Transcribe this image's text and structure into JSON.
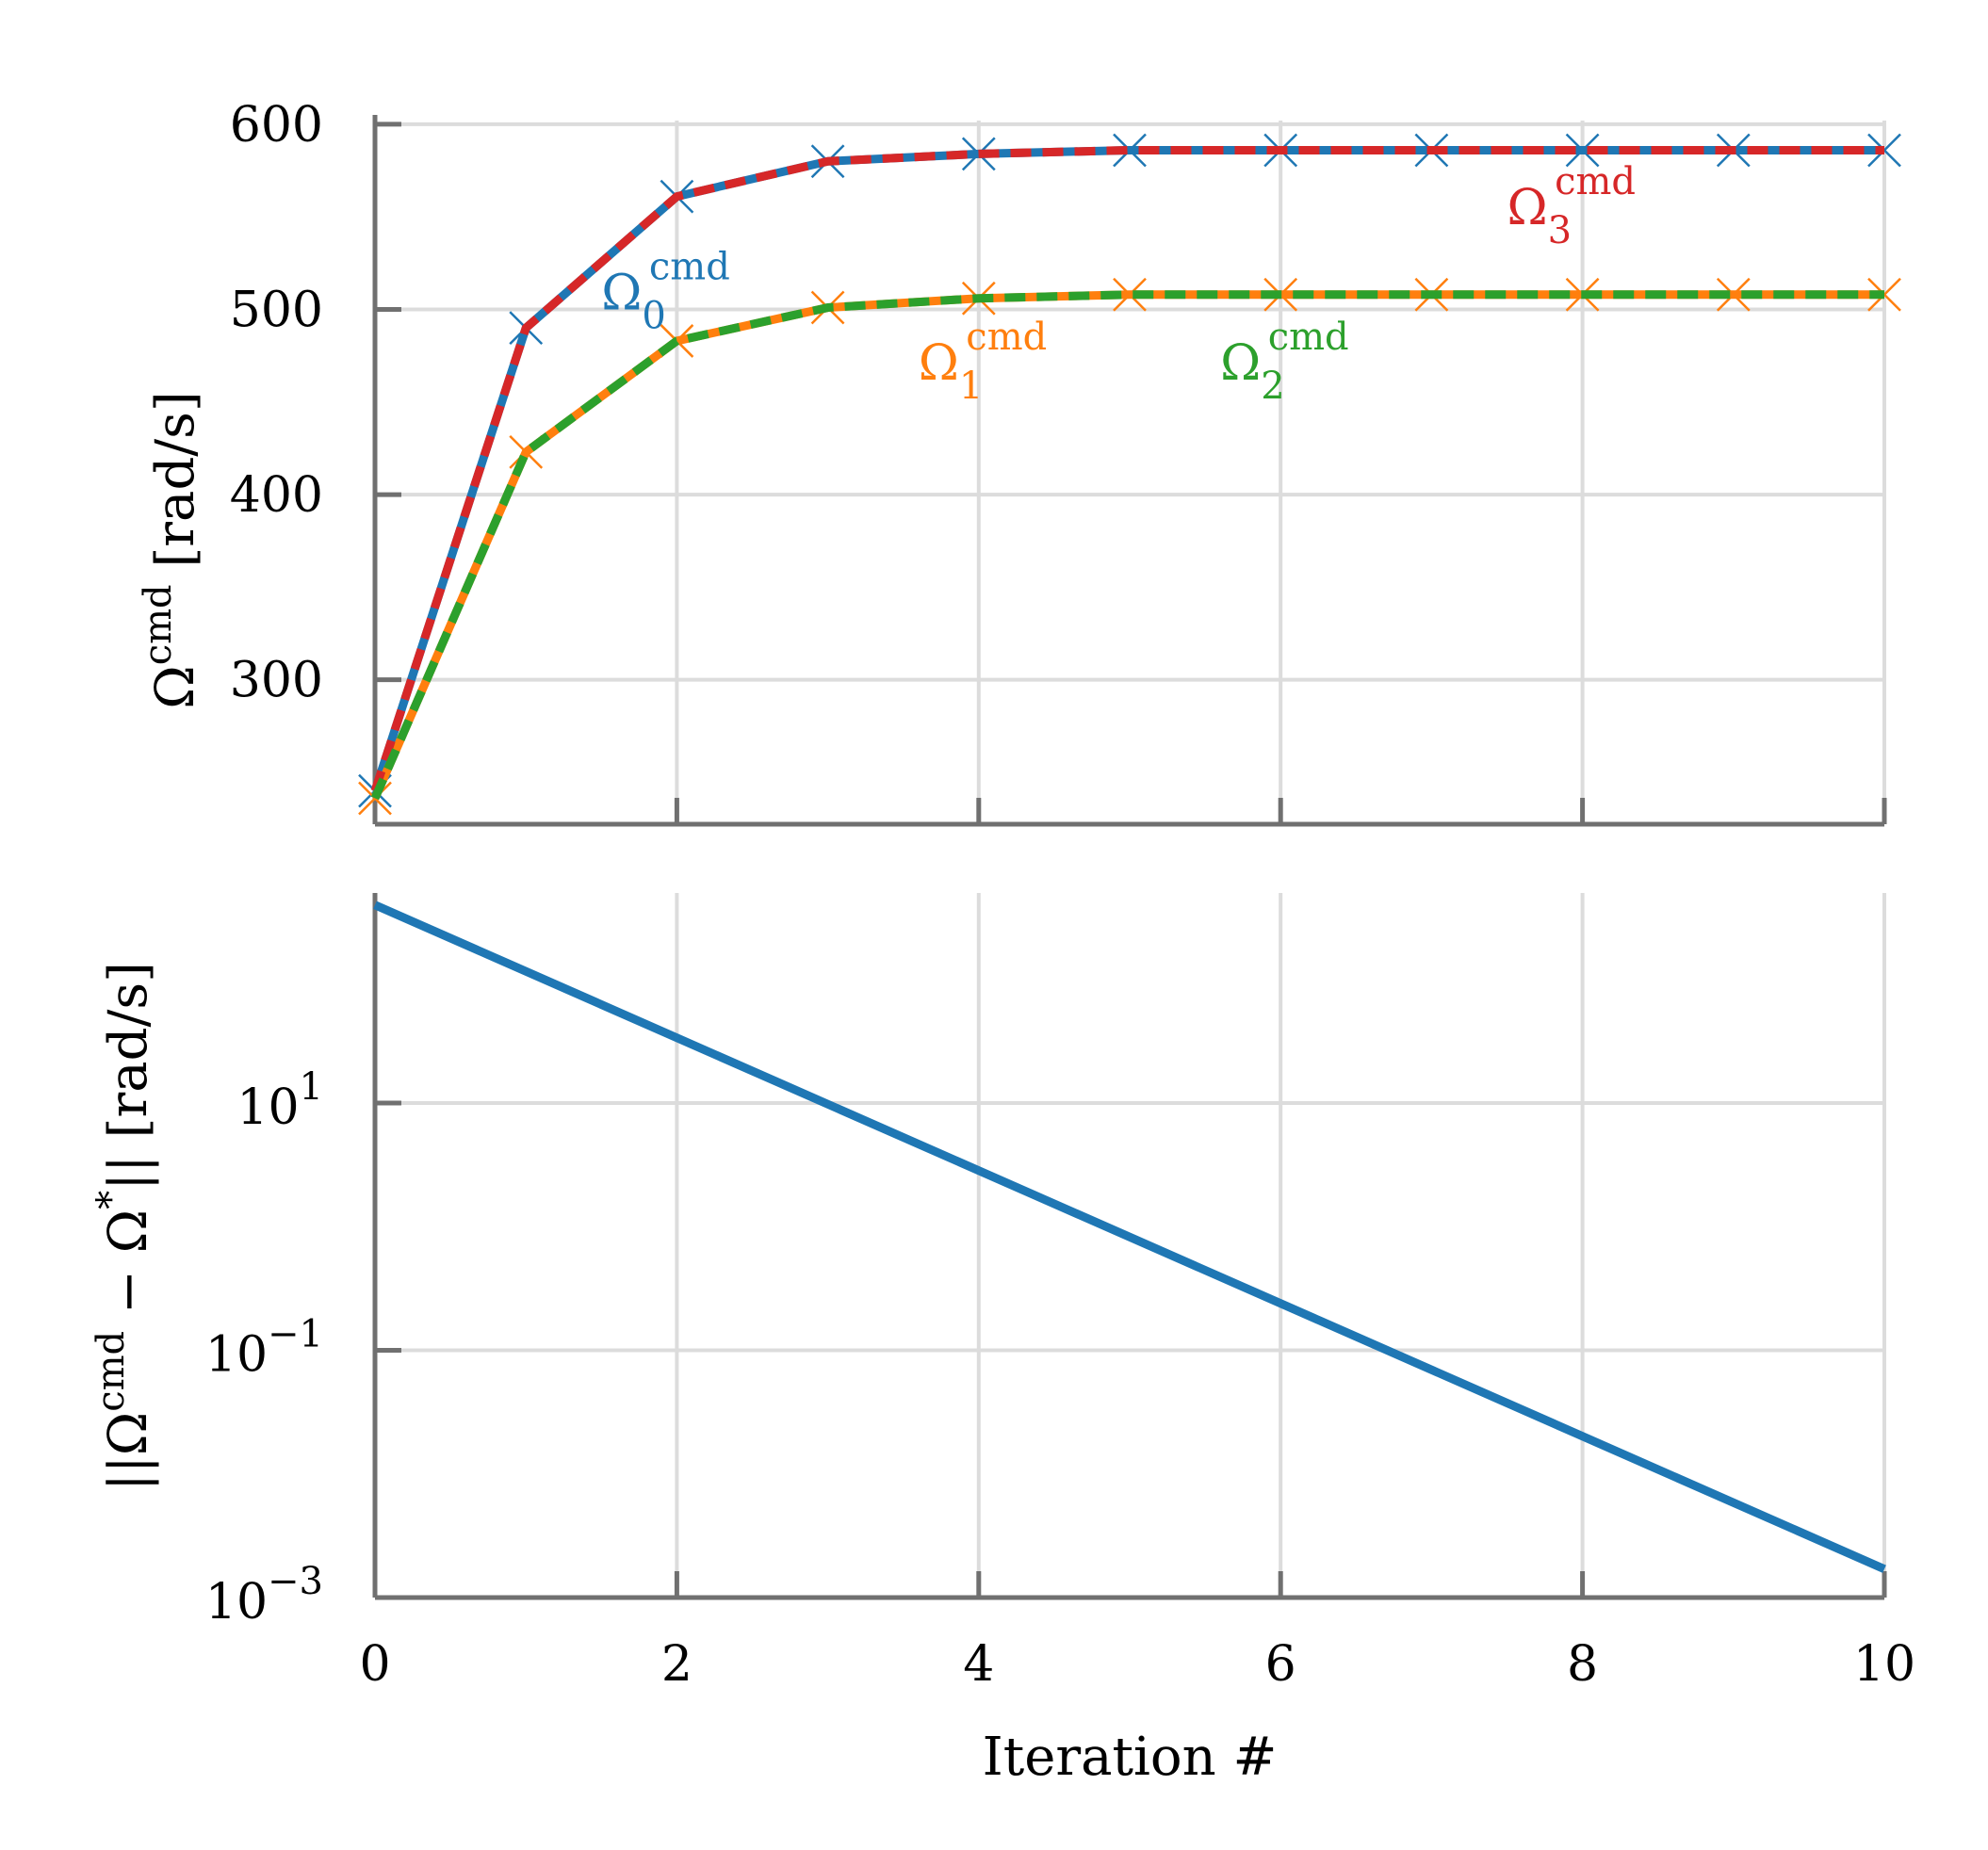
{
  "chart_data": [
    {
      "type": "line",
      "title": "",
      "xlabel": "",
      "ylabel": {
        "base": "Ω",
        "sup": "cmd",
        "unit": " [rad/s]"
      },
      "xlim": [
        0,
        10
      ],
      "ylim": [
        222,
        602
      ],
      "yticks": [
        300,
        400,
        500,
        600
      ],
      "xticks": [
        0,
        2,
        4,
        6,
        8,
        10
      ],
      "grid": true,
      "x": [
        0,
        1,
        2,
        3,
        4,
        5,
        6,
        7,
        8,
        9,
        10
      ],
      "series": [
        {
          "name": "Ω0cmd",
          "label_base": "Ω",
          "label_sub": "0",
          "label_sup": "cmd",
          "color": "#1f77b4",
          "marker": "x",
          "linestyle": "solid",
          "values": [
            240,
            490,
            561,
            580,
            584,
            586,
            586,
            586,
            586,
            586,
            586
          ]
        },
        {
          "name": "Ω1cmd",
          "label_base": "Ω",
          "label_sub": "1",
          "label_sup": "cmd",
          "color": "#ff7f0e",
          "marker": "x",
          "linestyle": "solid",
          "values": [
            236,
            423,
            483,
            501,
            506,
            508,
            508,
            508,
            508,
            508,
            508
          ]
        },
        {
          "name": "Ω2cmd",
          "label_base": "Ω",
          "label_sub": "2",
          "label_sup": "cmd",
          "color": "#2ca02c",
          "marker": "none",
          "linestyle": "dashed",
          "values": [
            236,
            423,
            483,
            501,
            506,
            508,
            508,
            508,
            508,
            508,
            508
          ]
        },
        {
          "name": "Ω3cmd",
          "label_base": "Ω",
          "label_sub": "3",
          "label_sup": "cmd",
          "color": "#d62728",
          "marker": "none",
          "linestyle": "dashed",
          "values": [
            240,
            490,
            561,
            580,
            584,
            586,
            586,
            586,
            586,
            586,
            586
          ]
        }
      ],
      "annotations": [
        {
          "series": 0,
          "x": 1.5,
          "y": 500
        },
        {
          "series": 1,
          "x": 3.6,
          "y": 462
        },
        {
          "series": 2,
          "x": 5.6,
          "y": 462
        },
        {
          "series": 3,
          "x": 7.5,
          "y": 546
        }
      ]
    },
    {
      "type": "line",
      "title": "",
      "xlabel": "Iteration #",
      "ylabel": "||Ωcmd − Ω*|| [rad/s]",
      "ylabel_parts": {
        "open": "||",
        "base": "Ω",
        "sup": "cmd",
        "mid": " − Ω",
        "star": "*",
        "close": "|| [rad/s]"
      },
      "yscale": "log",
      "xlim": [
        0,
        10
      ],
      "ylim": [
        0.001,
        500
      ],
      "yticks": [
        {
          "value": 0.001,
          "base": "10",
          "exp": "−3"
        },
        {
          "value": 0.1,
          "base": "10",
          "exp": "−1"
        },
        {
          "value": 10,
          "base": "10",
          "exp": "1"
        }
      ],
      "minor_grid_y": [
        1,
        100
      ],
      "xticks": [
        0,
        2,
        4,
        6,
        8,
        10
      ],
      "grid": true,
      "x": [
        0,
        10
      ],
      "series": [
        {
          "name": "error",
          "color": "#1f77b4",
          "values": [
            400,
            0.0017
          ]
        }
      ]
    }
  ]
}
